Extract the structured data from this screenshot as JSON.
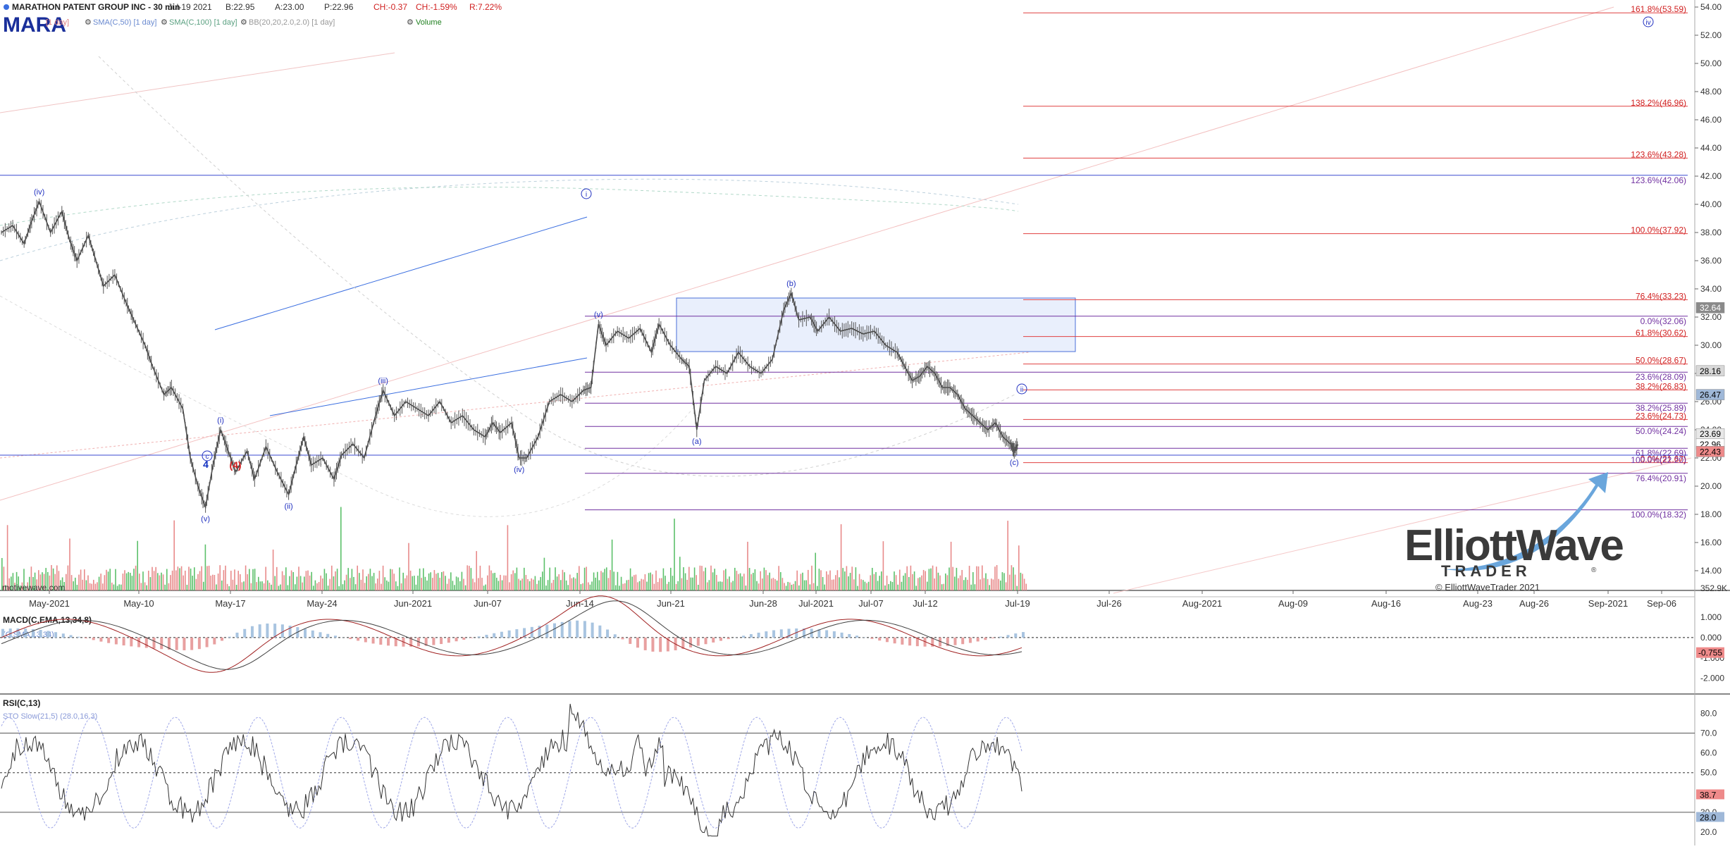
{
  "header": {
    "symbol": "MARA",
    "title": "MARATHON PATENT GROUP INC - 30 min",
    "date": "Jul-19 2021",
    "bid": "B:22.95",
    "ask": "A:23.00",
    "price": "P:22.96",
    "change": "CH:-0.37",
    "change_pct": "CH:-1.59%",
    "range": "R:7.22%",
    "indicators": [
      "[1 day]",
      "SMA(C,50) [1 day]",
      "SMA(C,100) [1 day]",
      "BB(20,20,2.0,2.0) [1 day]",
      "Volume"
    ],
    "watermark": "motivewave.com"
  },
  "logo": {
    "line1": "ElliottWave",
    "line2": "TRADER",
    "copyright": "© ElliottWaveTrader 2021",
    "registered": "®"
  },
  "chart_data": {
    "type": "line",
    "ylim": [
      13,
      54
    ],
    "yticks": [
      "14.00",
      "16.00",
      "18.00",
      "20.00",
      "22.00",
      "24.00",
      "26.00",
      "28.00",
      "30.00",
      "32.00",
      "34.00",
      "36.00",
      "38.00",
      "40.00",
      "42.00",
      "44.00",
      "46.00",
      "48.00",
      "50.00",
      "52.00",
      "54.00"
    ],
    "volume_label": "352.9K",
    "xticks": [
      "May-2021",
      "May-10",
      "May-17",
      "May-24",
      "Jun-2021",
      "Jun-07",
      "Jun-14",
      "Jun-21",
      "Jun-28",
      "Jul-2021",
      "Jul-07",
      "Jul-12",
      "Jul-19",
      "Jul-26",
      "Aug-2021",
      "Aug-09",
      "Aug-16",
      "Aug-23",
      "Aug-26",
      "Sep-2021",
      "Sep-06"
    ],
    "price_series": [
      [
        0,
        38.0
      ],
      [
        3,
        38.5
      ],
      [
        6,
        37.2
      ],
      [
        8,
        38.8
      ],
      [
        10,
        40.2
      ],
      [
        13,
        38.0
      ],
      [
        16,
        39.5
      ],
      [
        18,
        37.5
      ],
      [
        20,
        36.0
      ],
      [
        23,
        37.8
      ],
      [
        25,
        36.0
      ],
      [
        27,
        34.2
      ],
      [
        30,
        35.0
      ],
      [
        33,
        33.0
      ],
      [
        35,
        31.8
      ],
      [
        38,
        30.0
      ],
      [
        40,
        28.5
      ],
      [
        43,
        26.5
      ],
      [
        45,
        27.0
      ],
      [
        48,
        25.5
      ],
      [
        50,
        22.0
      ],
      [
        52,
        20.0
      ],
      [
        54,
        18.5
      ],
      [
        56,
        21.5
      ],
      [
        58,
        24.0
      ],
      [
        60,
        22.5
      ],
      [
        62,
        21.0
      ],
      [
        65,
        22.5
      ],
      [
        67,
        20.5
      ],
      [
        70,
        22.8
      ],
      [
        73,
        21.0
      ],
      [
        76,
        19.4
      ],
      [
        78,
        21.5
      ],
      [
        80,
        23.5
      ],
      [
        82,
        21.5
      ],
      [
        85,
        22.0
      ],
      [
        88,
        20.5
      ],
      [
        90,
        22.2
      ],
      [
        93,
        23.0
      ],
      [
        96,
        22.0
      ],
      [
        99,
        25.0
      ],
      [
        101,
        26.8
      ],
      [
        104,
        25.0
      ],
      [
        107,
        26.0
      ],
      [
        110,
        25.5
      ],
      [
        113,
        25.0
      ],
      [
        116,
        26.0
      ],
      [
        119,
        24.5
      ],
      [
        122,
        25.0
      ],
      [
        125,
        24.0
      ],
      [
        128,
        23.5
      ],
      [
        130,
        24.5
      ],
      [
        132,
        23.8
      ],
      [
        135,
        24.5
      ],
      [
        137,
        22.0
      ],
      [
        139,
        22.0
      ],
      [
        142,
        23.5
      ],
      [
        145,
        26.0
      ],
      [
        148,
        26.5
      ],
      [
        151,
        26.0
      ],
      [
        154,
        26.8
      ],
      [
        156,
        27.0
      ],
      [
        158,
        31.5
      ],
      [
        160,
        30.0
      ],
      [
        163,
        31.0
      ],
      [
        166,
        30.5
      ],
      [
        169,
        31.2
      ],
      [
        172,
        29.5
      ],
      [
        174,
        31.5
      ],
      [
        177,
        30.0
      ],
      [
        180,
        29.0
      ],
      [
        182,
        28.5
      ],
      [
        184,
        24.0
      ],
      [
        186,
        27.5
      ],
      [
        189,
        28.5
      ],
      [
        192,
        28.0
      ],
      [
        195,
        29.5
      ],
      [
        198,
        28.5
      ],
      [
        201,
        28.0
      ],
      [
        204,
        29.0
      ],
      [
        207,
        32.5
      ],
      [
        209,
        33.7
      ],
      [
        211,
        31.8
      ],
      [
        214,
        32.0
      ],
      [
        216,
        31.0
      ],
      [
        219,
        32.0
      ],
      [
        222,
        31.0
      ],
      [
        225,
        31.2
      ],
      [
        228,
        30.8
      ],
      [
        231,
        31.0
      ],
      [
        234,
        30.0
      ],
      [
        237,
        29.5
      ],
      [
        239,
        28.5
      ],
      [
        241,
        27.5
      ],
      [
        243,
        27.8
      ],
      [
        245,
        28.5
      ],
      [
        247,
        28.0
      ],
      [
        249,
        27.0
      ],
      [
        251,
        27.0
      ],
      [
        253,
        26.5
      ],
      [
        255,
        25.5
      ],
      [
        257,
        25.0
      ],
      [
        259,
        24.5
      ],
      [
        261,
        24.0
      ],
      [
        263,
        24.5
      ],
      [
        265,
        23.5
      ],
      [
        267,
        23.0
      ],
      [
        268,
        22.5
      ],
      [
        269,
        22.96
      ]
    ],
    "price_x_range": [
      0,
      270
    ],
    "waves": [
      {
        "label": "(iv)",
        "i": 10,
        "v": 40.2,
        "pos": "above",
        "color": "#2030c0"
      },
      {
        "label": "(i)",
        "i": 58,
        "v": 24.0,
        "pos": "above",
        "color": "#2030c0"
      },
      {
        "label": "(v)",
        "i": 54,
        "v": 18.5,
        "pos": "below",
        "color": "#2030c0"
      },
      {
        "label": "(ii)",
        "i": 76,
        "v": 19.4,
        "pos": "below",
        "color": "#2030c0"
      },
      {
        "label": "(iii)",
        "i": 101,
        "v": 26.8,
        "pos": "above",
        "color": "#2030c0"
      },
      {
        "label": "(iv)",
        "i": 137,
        "v": 22.0,
        "pos": "below",
        "color": "#2030c0"
      },
      {
        "label": "(v)",
        "i": 158,
        "v": 31.5,
        "pos": "above",
        "color": "#2030c0"
      },
      {
        "label": "(a)",
        "i": 184,
        "v": 24.0,
        "pos": "below",
        "color": "#2030c0"
      },
      {
        "label": "(b)",
        "i": 209,
        "v": 33.7,
        "pos": "above",
        "color": "#2030c0"
      },
      {
        "label": "(c)",
        "i": 268,
        "v": 22.5,
        "pos": "below",
        "color": "#2030c0"
      }
    ],
    "circled_labels": [
      {
        "text": "i",
        "x": 832,
        "y": 275
      },
      {
        "text": "c",
        "x": 294,
        "y": 647
      },
      {
        "text": "ii",
        "x": 1450,
        "y": 552
      },
      {
        "text": "iv",
        "x": 2339,
        "y": 31
      }
    ],
    "big_labels": [
      {
        "text": "4",
        "x": 292,
        "y": 664,
        "color": "#1030c0"
      },
      {
        "text": "(4)",
        "x": 334,
        "y": 665,
        "color": "#d02020"
      }
    ],
    "red_fibs": [
      {
        "label": "161.8%(53.59)",
        "v": 53.59
      },
      {
        "label": "138.2%(46.96)",
        "v": 46.96
      },
      {
        "label": "123.6%(43.28)",
        "v": 43.28
      },
      {
        "label": "100.0%(37.92)",
        "v": 37.92
      },
      {
        "label": "76.4%(33.23)",
        "v": 33.23
      },
      {
        "label": "61.8%(30.62)",
        "v": 30.62
      },
      {
        "label": "50.0%(28.67)",
        "v": 28.67
      },
      {
        "label": "38.2%(26.83)",
        "v": 26.83
      },
      {
        "label": "23.6%(24.73)",
        "v": 24.73
      },
      {
        "label": "0.0%(21.67)",
        "v": 21.67
      }
    ],
    "purple_fibs": [
      {
        "label": "123.6%(42.06)",
        "v": 42.06,
        "x1": 0
      },
      {
        "label": "0.0%(32.06)",
        "v": 32.06,
        "x1": 830
      },
      {
        "label": "23.6%(28.09)",
        "v": 28.09,
        "x1": 830
      },
      {
        "label": "38.2%(25.89)",
        "v": 25.89,
        "x1": 830
      },
      {
        "label": "50.0%(24.24)",
        "v": 24.24,
        "x1": 830
      },
      {
        "label": "61.8%(22.69)",
        "v": 22.69,
        "x1": 830
      },
      {
        "label": "100.0%(22.20)",
        "v": 22.2,
        "x1": 0
      },
      {
        "label": "76.4%(20.91)",
        "v": 20.91,
        "x1": 830
      },
      {
        "label": "100.0%(18.32)",
        "v": 18.32,
        "x1": 830
      }
    ],
    "price_badges": [
      {
        "text": "32.64",
        "v": 32.64,
        "bg": "#8a8a8a",
        "fg": "#ffffff"
      },
      {
        "text": "28.16",
        "v": 28.16,
        "bg": "#d8d8d8",
        "fg": "#000000"
      },
      {
        "text": "26.47",
        "v": 26.47,
        "bg": "#9fb8d8",
        "fg": "#000000"
      },
      {
        "text": "23.69",
        "v": 23.69,
        "bg": "#e8e8e8",
        "fg": "#000000"
      },
      {
        "text": "22.96",
        "v": 22.96,
        "bg": "#ffffff",
        "fg": "#000000"
      },
      {
        "text": "22.43",
        "v": 22.43,
        "bg": "#ee8a8a",
        "fg": "#000000"
      }
    ],
    "macd": {
      "title": "MACD(C,EMA,13,34,8)",
      "sub": "(C,SMA,13,34)",
      "ticks": [
        "1.000",
        "0.000",
        "-1.000",
        "-2.000"
      ],
      "tick_values": [
        1,
        0,
        -1,
        -2
      ],
      "ylim": [
        -2.6,
        1.9
      ],
      "value_label": "-0.755"
    },
    "rsi": {
      "title": "RSI(C,13)",
      "sub": "STO Slow(21,5) (28.0,16.3)",
      "ticks": [
        "80.0",
        "70.0",
        "60.0",
        "50.0",
        "40.0",
        "30.0",
        "20.0"
      ],
      "tick_values": [
        80,
        70,
        60,
        50,
        40,
        30,
        20
      ],
      "ylim": [
        15,
        88
      ],
      "badges": [
        "38.7",
        "28.0"
      ]
    }
  }
}
